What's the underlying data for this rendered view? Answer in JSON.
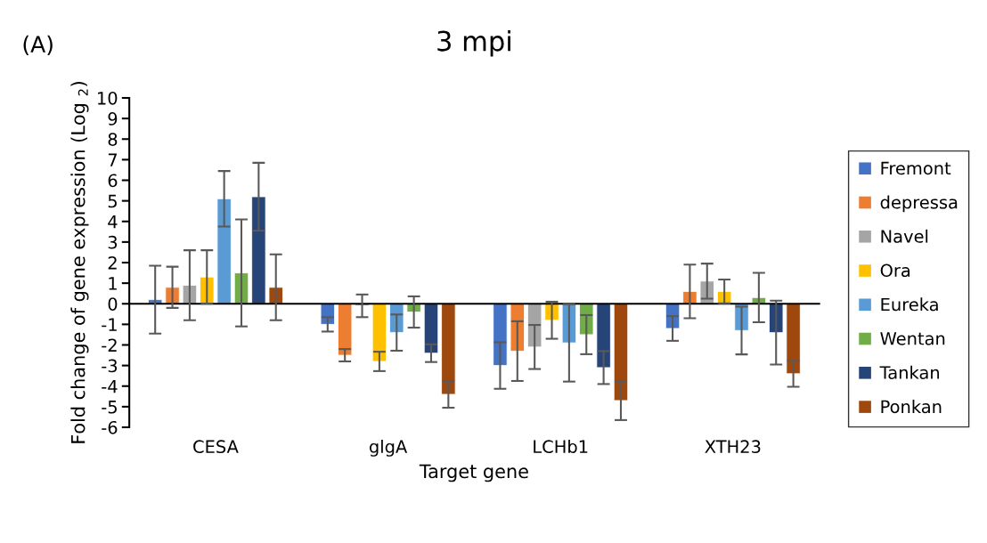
{
  "chart_data": {
    "type": "bar",
    "title": "3 mpi",
    "xlabel": "Target gene",
    "ylabel": "Fold change of gene expression (Log $_{2}$)",
    "annotations": [
      "(A)"
    ],
    "categories": [
      "CESA",
      "glgA",
      "LCHb1",
      "XTH23"
    ],
    "series": [
      {
        "name": "Fremont",
        "color": "#4472c4",
        "values": [
          0.2,
          -1.0,
          -3.0,
          -1.2
        ],
        "errors": [
          1.65,
          0.35,
          1.13,
          0.6
        ]
      },
      {
        "name": "depressa",
        "color": "#ed7d31",
        "values": [
          0.8,
          -2.5,
          -2.3,
          0.6
        ],
        "errors": [
          1.0,
          0.3,
          1.45,
          1.3
        ]
      },
      {
        "name": "Navel",
        "color": "#a5a5a5",
        "values": [
          0.9,
          -0.1,
          -2.1,
          1.1
        ],
        "errors": [
          1.7,
          0.55,
          1.07,
          0.85
        ]
      },
      {
        "name": "Ora",
        "color": "#ffc000",
        "values": [
          1.3,
          -2.8,
          -0.8,
          0.6
        ],
        "errors": [
          1.3,
          0.47,
          0.9,
          0.58
        ]
      },
      {
        "name": "Eureka",
        "color": "#5b9bd5",
        "values": [
          5.1,
          -1.4,
          -1.9,
          -1.3
        ],
        "errors": [
          1.35,
          0.88,
          1.88,
          1.16
        ]
      },
      {
        "name": "Wentan",
        "color": "#70ad47",
        "values": [
          1.5,
          -0.4,
          -1.5,
          0.3
        ],
        "errors": [
          2.6,
          0.76,
          0.95,
          1.2
        ]
      },
      {
        "name": "Tankan",
        "color": "#264478",
        "values": [
          5.2,
          -2.4,
          -3.1,
          -1.4
        ],
        "errors": [
          1.65,
          0.43,
          0.8,
          1.55
        ]
      },
      {
        "name": "Ponkan",
        "color": "#9e480e",
        "values": [
          0.8,
          -4.4,
          -4.7,
          -3.4
        ],
        "errors": [
          1.6,
          0.65,
          0.95,
          0.63
        ]
      }
    ],
    "ylim": [
      -6,
      10
    ],
    "yticks": [
      -6,
      -5,
      -4,
      -3,
      -2,
      -1,
      0,
      1,
      2,
      3,
      4,
      5,
      6,
      7,
      8,
      9,
      10
    ],
    "legend": "right"
  }
}
